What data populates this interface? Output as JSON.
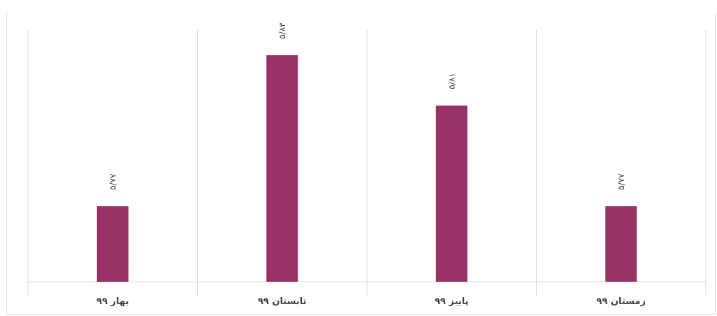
{
  "title": "",
  "chart_data": {
    "type": "bar",
    "categories": [
      "بهار ۹۹",
      "تابستان ۹۹",
      "پاییز ۹۹",
      "زمستان ۹۹"
    ],
    "values": [
      5.77,
      5.83,
      5.81,
      5.77
    ],
    "data_labels": [
      "۵/۷۷",
      "۵/۸۳",
      "۵/۸۱",
      "۵/۷۷"
    ],
    "bar_color": "#993366",
    "grid": "vertical",
    "legend": "none",
    "xlabel": "",
    "ylabel": "",
    "ylim": [
      5.74,
      5.84
    ]
  }
}
